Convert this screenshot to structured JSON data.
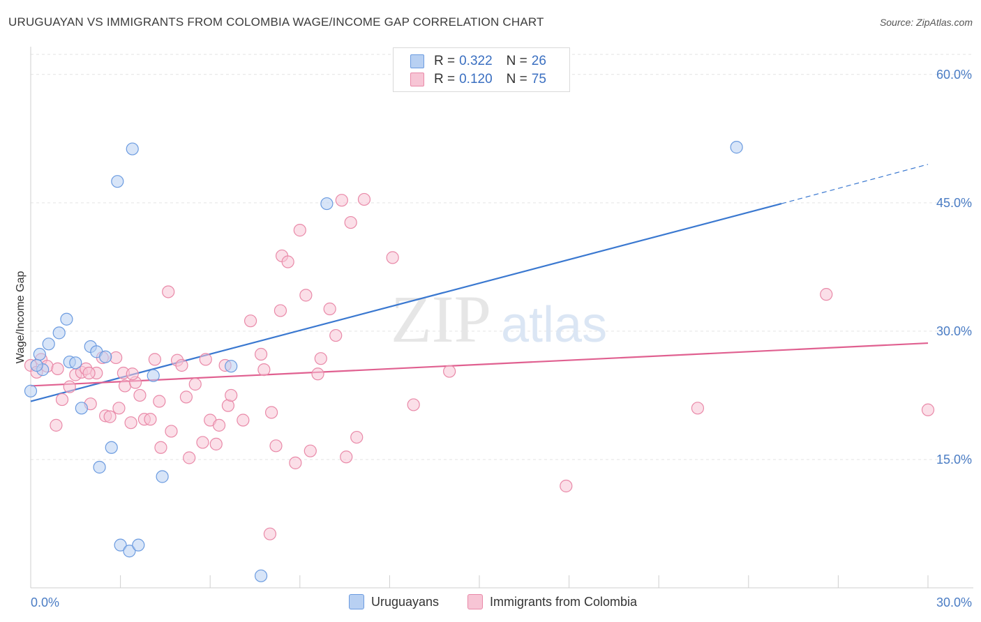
{
  "title": "URUGUAYAN VS IMMIGRANTS FROM COLOMBIA WAGE/INCOME GAP CORRELATION CHART",
  "source": "Source: ZipAtlas.com",
  "watermark": {
    "part1": "ZIP",
    "part2": "atlas"
  },
  "legend": {
    "rows": [
      {
        "r_label": "R =",
        "r_value": "0.322",
        "n_label": "N =",
        "n_value": "26",
        "color": "#6b9be0",
        "fill": "#b8d0f2"
      },
      {
        "r_label": "R =",
        "r_value": "0.120",
        "n_label": "N =",
        "n_value": "75",
        "color": "#e989a8",
        "fill": "#f7c5d5"
      }
    ]
  },
  "bottom_legend": {
    "series1": "Uruguayans",
    "series2": "Immigrants from Colombia"
  },
  "chart_data": {
    "type": "scatter",
    "title": "URUGUAYAN VS IMMIGRANTS FROM COLOMBIA WAGE/INCOME GAP CORRELATION CHART",
    "xlabel": "",
    "ylabel": "Wage/Income Gap",
    "xlim": [
      0,
      30
    ],
    "ylim": [
      0,
      63
    ],
    "x_tick_labels": [
      "0.0%",
      "30.0%"
    ],
    "y_ticks": [
      15,
      30,
      45,
      60
    ],
    "y_tick_labels": [
      "15.0%",
      "30.0%",
      "45.0%",
      "60.0%"
    ],
    "grid": true,
    "series": [
      {
        "name": "Uruguayans",
        "color": "#6b9be0",
        "fill": "#b8d0f2",
        "trend": {
          "x0": 0,
          "y0": 21.8,
          "x1": 25.1,
          "y1": 44.9,
          "dash_to_x": 30,
          "dash_to_y": 49.5,
          "color": "#3a78d0"
        },
        "points": [
          [
            0.0,
            23.0
          ],
          [
            0.3,
            27.3
          ],
          [
            0.6,
            28.5
          ],
          [
            0.4,
            25.5
          ],
          [
            0.2,
            26.0
          ],
          [
            0.95,
            29.8
          ],
          [
            1.2,
            31.4
          ],
          [
            1.3,
            26.4
          ],
          [
            1.5,
            26.3
          ],
          [
            2.0,
            28.2
          ],
          [
            2.2,
            27.6
          ],
          [
            2.5,
            27.0
          ],
          [
            1.7,
            21.0
          ],
          [
            2.7,
            16.4
          ],
          [
            2.3,
            14.1
          ],
          [
            2.9,
            47.5
          ],
          [
            3.4,
            51.3
          ],
          [
            4.1,
            24.8
          ],
          [
            4.4,
            13.0
          ],
          [
            3.0,
            5.0
          ],
          [
            3.3,
            4.3
          ],
          [
            3.6,
            5.0
          ],
          [
            6.7,
            25.9
          ],
          [
            7.7,
            1.4
          ],
          [
            9.9,
            44.9
          ],
          [
            23.6,
            51.5
          ]
        ]
      },
      {
        "name": "Immigrants from Colombia",
        "color": "#e989a8",
        "fill": "#f7c5d5",
        "trend": {
          "x0": 0,
          "y0": 23.6,
          "x1": 30,
          "y1": 28.6,
          "color": "#e06090"
        },
        "points": [
          [
            0.0,
            26.0
          ],
          [
            0.35,
            26.7
          ],
          [
            0.55,
            25.9
          ],
          [
            0.9,
            25.6
          ],
          [
            1.05,
            22.0
          ],
          [
            0.85,
            19.0
          ],
          [
            1.3,
            23.5
          ],
          [
            1.5,
            24.9
          ],
          [
            1.7,
            25.2
          ],
          [
            1.85,
            25.6
          ],
          [
            2.0,
            21.5
          ],
          [
            2.2,
            25.1
          ],
          [
            2.4,
            26.9
          ],
          [
            2.5,
            20.1
          ],
          [
            2.65,
            20.0
          ],
          [
            2.85,
            26.9
          ],
          [
            2.95,
            21.0
          ],
          [
            3.1,
            25.1
          ],
          [
            3.15,
            23.6
          ],
          [
            3.35,
            19.3
          ],
          [
            3.5,
            24.0
          ],
          [
            3.65,
            22.5
          ],
          [
            3.8,
            19.7
          ],
          [
            4.0,
            19.7
          ],
          [
            4.15,
            26.7
          ],
          [
            4.3,
            21.8
          ],
          [
            4.35,
            16.4
          ],
          [
            4.6,
            34.6
          ],
          [
            4.7,
            18.3
          ],
          [
            4.9,
            26.6
          ],
          [
            5.05,
            26.0
          ],
          [
            5.2,
            22.3
          ],
          [
            5.3,
            15.2
          ],
          [
            5.5,
            23.8
          ],
          [
            5.75,
            17.0
          ],
          [
            5.85,
            26.7
          ],
          [
            6.0,
            19.6
          ],
          [
            6.2,
            16.8
          ],
          [
            6.3,
            19.0
          ],
          [
            6.5,
            26.0
          ],
          [
            6.6,
            21.3
          ],
          [
            6.7,
            22.5
          ],
          [
            7.1,
            19.6
          ],
          [
            7.35,
            31.2
          ],
          [
            7.7,
            27.3
          ],
          [
            7.8,
            25.5
          ],
          [
            8.05,
            20.5
          ],
          [
            8.2,
            16.6
          ],
          [
            8.35,
            32.4
          ],
          [
            8.4,
            38.8
          ],
          [
            8.6,
            38.1
          ],
          [
            8.85,
            14.6
          ],
          [
            9.0,
            41.8
          ],
          [
            9.2,
            34.2
          ],
          [
            9.35,
            16.0
          ],
          [
            9.6,
            25.0
          ],
          [
            9.7,
            26.8
          ],
          [
            10.0,
            32.6
          ],
          [
            10.2,
            29.5
          ],
          [
            10.4,
            45.3
          ],
          [
            10.55,
            15.3
          ],
          [
            10.7,
            42.7
          ],
          [
            10.9,
            17.6
          ],
          [
            11.15,
            45.4
          ],
          [
            12.1,
            38.6
          ],
          [
            12.8,
            21.4
          ],
          [
            14.0,
            25.3
          ],
          [
            17.9,
            11.9
          ],
          [
            22.3,
            21.0
          ],
          [
            26.6,
            34.3
          ],
          [
            30.0,
            20.8
          ],
          [
            8.0,
            6.3
          ],
          [
            1.95,
            25.1
          ],
          [
            3.4,
            25.0
          ],
          [
            0.2,
            25.2
          ]
        ]
      }
    ]
  }
}
